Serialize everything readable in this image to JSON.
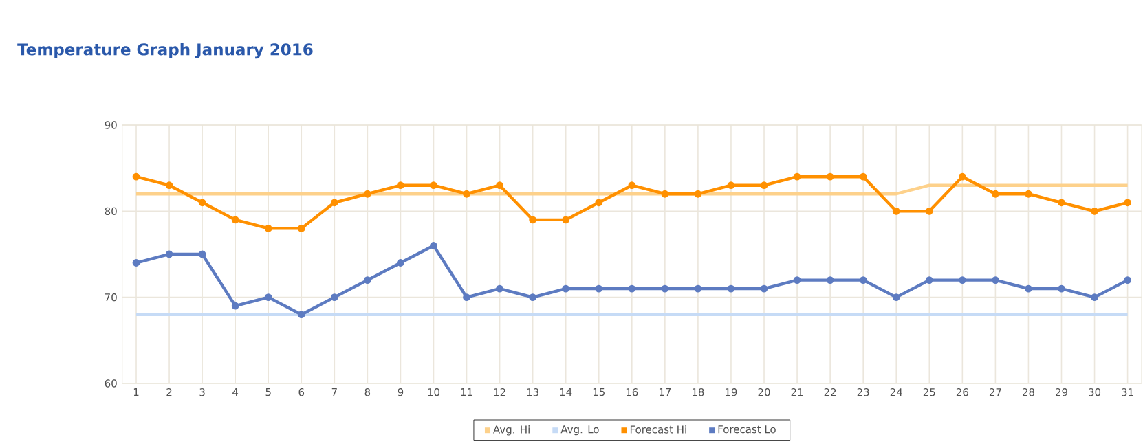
{
  "chart_data": {
    "type": "line",
    "title": "Temperature Graph January 2016",
    "categories": [
      "1",
      "2",
      "3",
      "4",
      "5",
      "6",
      "7",
      "8",
      "9",
      "10",
      "11",
      "12",
      "13",
      "14",
      "15",
      "16",
      "17",
      "18",
      "19",
      "20",
      "21",
      "22",
      "23",
      "24",
      "25",
      "26",
      "27",
      "28",
      "29",
      "30",
      "31"
    ],
    "series": [
      {
        "name": "Avg. Hi",
        "color": "#fdd18b",
        "marker": "none",
        "values": [
          82,
          82,
          82,
          82,
          82,
          82,
          82,
          82,
          82,
          82,
          82,
          82,
          82,
          82,
          82,
          82,
          82,
          82,
          82,
          82,
          82,
          82,
          82,
          82,
          83,
          83,
          83,
          83,
          83,
          83,
          83
        ]
      },
      {
        "name": "Avg. Lo",
        "color": "#c6dbf6",
        "marker": "none",
        "values": [
          68,
          68,
          68,
          68,
          68,
          68,
          68,
          68,
          68,
          68,
          68,
          68,
          68,
          68,
          68,
          68,
          68,
          68,
          68,
          68,
          68,
          68,
          68,
          68,
          68,
          68,
          68,
          68,
          68,
          68,
          68
        ]
      },
      {
        "name": "Forecast Hi",
        "color": "#ff9000",
        "values": [
          84,
          83,
          81,
          79,
          78,
          78,
          81,
          82,
          83,
          83,
          82,
          83,
          79,
          79,
          81,
          83,
          82,
          82,
          83,
          83,
          84,
          84,
          84,
          80,
          80,
          84,
          82,
          82,
          81,
          80,
          81
        ]
      },
      {
        "name": "Forecast Lo",
        "color": "#5d7bc1",
        "values": [
          74,
          75,
          75,
          69,
          70,
          68,
          70,
          72,
          74,
          76,
          70,
          71,
          70,
          71,
          71,
          71,
          71,
          71,
          71,
          71,
          72,
          72,
          72,
          70,
          72,
          72,
          72,
          71,
          71,
          70,
          72
        ]
      }
    ],
    "ylim": [
      60,
      90
    ],
    "yticks": [
      60,
      70,
      80,
      90
    ],
    "grid": true,
    "legend": "bottom",
    "marker": "circle",
    "line_style": "solid"
  }
}
